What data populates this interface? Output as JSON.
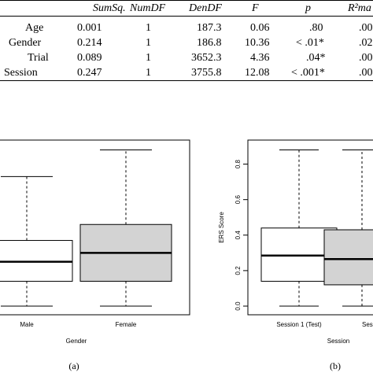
{
  "table": {
    "headers": [
      "SumSq.",
      "NumDF",
      "DenDF",
      "F",
      "p",
      "R²ma"
    ],
    "rows": [
      {
        "label": "Age",
        "sumsq": "0.001",
        "numdf": "1",
        "dendf": "187.3",
        "f": "0.06",
        "p": ".80",
        "r2": ".00"
      },
      {
        "label": "Gender",
        "sumsq": "0.214",
        "numdf": "1",
        "dendf": "186.8",
        "f": "10.36",
        "p": "< .01*",
        "r2": ".02"
      },
      {
        "label": "Trial",
        "sumsq": "0.089",
        "numdf": "1",
        "dendf": "3652.3",
        "f": "4.36",
        "p": ".04*",
        "r2": ".00"
      },
      {
        "label": "Session",
        "sumsq": "0.247",
        "numdf": "1",
        "dendf": "3755.8",
        "f": "12.08",
        "p": "< .001*",
        "r2": ".00"
      }
    ]
  },
  "captions": {
    "a": "(a)",
    "b": "(b)"
  },
  "chart_data": [
    {
      "type": "box",
      "xlabel": "Gender",
      "ylabel": "",
      "ylim": [
        0,
        0.9
      ],
      "categories": [
        "Male",
        "Female"
      ],
      "boxes": [
        {
          "name": "Male",
          "min": 0.0,
          "q1": 0.14,
          "median": 0.25,
          "q3": 0.37,
          "max": 0.73,
          "fill": "#ffffff"
        },
        {
          "name": "Female",
          "min": 0.0,
          "q1": 0.14,
          "median": 0.3,
          "q3": 0.46,
          "max": 0.88,
          "fill": "#d3d3d3"
        }
      ]
    },
    {
      "type": "box",
      "xlabel": "Session",
      "ylabel": "ERS Score",
      "ylim": [
        0,
        0.9
      ],
      "yticks": [
        "0.0",
        "0.2",
        "0.4",
        "0.6",
        "0.8"
      ],
      "categories": [
        "Session 1 (Test)",
        "Sess"
      ],
      "boxes": [
        {
          "name": "Session 1 (Test)",
          "min": 0.0,
          "q1": 0.14,
          "median": 0.285,
          "q3": 0.44,
          "max": 0.88,
          "fill": "#ffffff"
        },
        {
          "name": "Sess",
          "min": 0.0,
          "q1": 0.12,
          "median": 0.265,
          "q3": 0.43,
          "max": 0.88,
          "fill": "#d3d3d3"
        }
      ]
    }
  ]
}
